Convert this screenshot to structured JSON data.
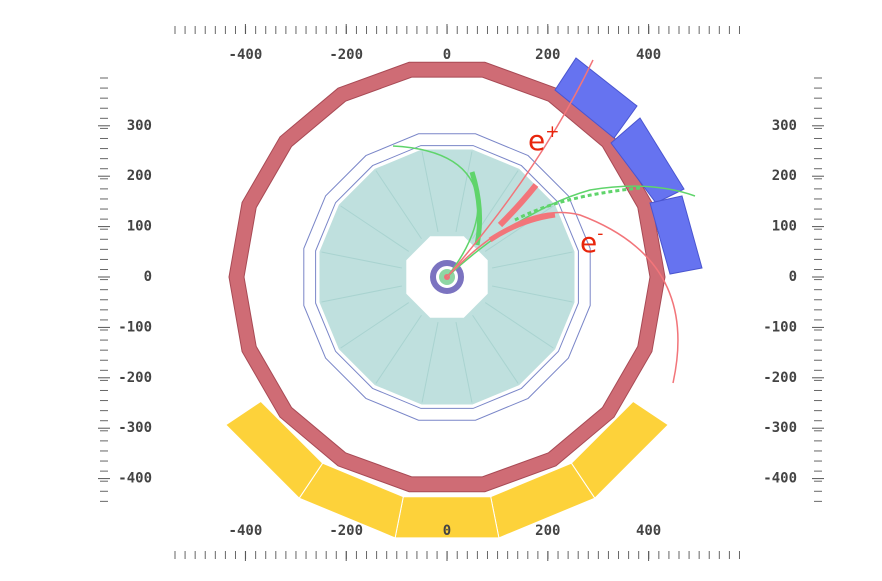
{
  "axes": {
    "xticks": [
      -400,
      -200,
      0,
      200,
      400
    ],
    "yticks": [
      300,
      200,
      100,
      0,
      -100,
      -200,
      -300,
      -400
    ]
  },
  "annotations": [
    {
      "base": "e",
      "sup": "+"
    },
    {
      "base": "e",
      "sup": "-"
    }
  ]
}
